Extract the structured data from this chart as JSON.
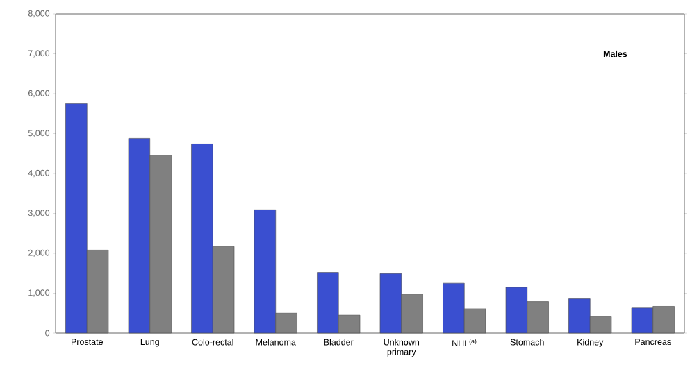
{
  "chart_data": {
    "type": "bar",
    "categories": [
      "Prostate",
      "Lung",
      "Colo-rectal",
      "Melanoma",
      "Bladder",
      "Unknown primary",
      "NHL$^{(a)}$",
      "Stomach",
      "Kidney",
      "Pancreas"
    ],
    "series": [
      {
        "color": "#3a4fd0",
        "values": [
          5750,
          4880,
          4740,
          3090,
          1520,
          1490,
          1250,
          1150,
          860,
          630
        ]
      },
      {
        "color": "#808080",
        "values": [
          2080,
          4460,
          2170,
          500,
          450,
          980,
          610,
          790,
          410,
          670
        ]
      }
    ],
    "ylim": [
      0,
      8000
    ],
    "yticks": [
      {
        "value": 0,
        "label": "0"
      },
      {
        "value": 1000,
        "label": "1,000"
      },
      {
        "value": 2000,
        "label": "2,000"
      },
      {
        "value": 3000,
        "label": "3,000"
      },
      {
        "value": 4000,
        "label": "4,000"
      },
      {
        "value": 5000,
        "label": "5,000"
      },
      {
        "value": 6000,
        "label": "6,000"
      },
      {
        "value": 7000,
        "label": "7,000"
      },
      {
        "value": 8000,
        "label": "8,000"
      }
    ],
    "annotations": [
      "Males"
    ]
  }
}
